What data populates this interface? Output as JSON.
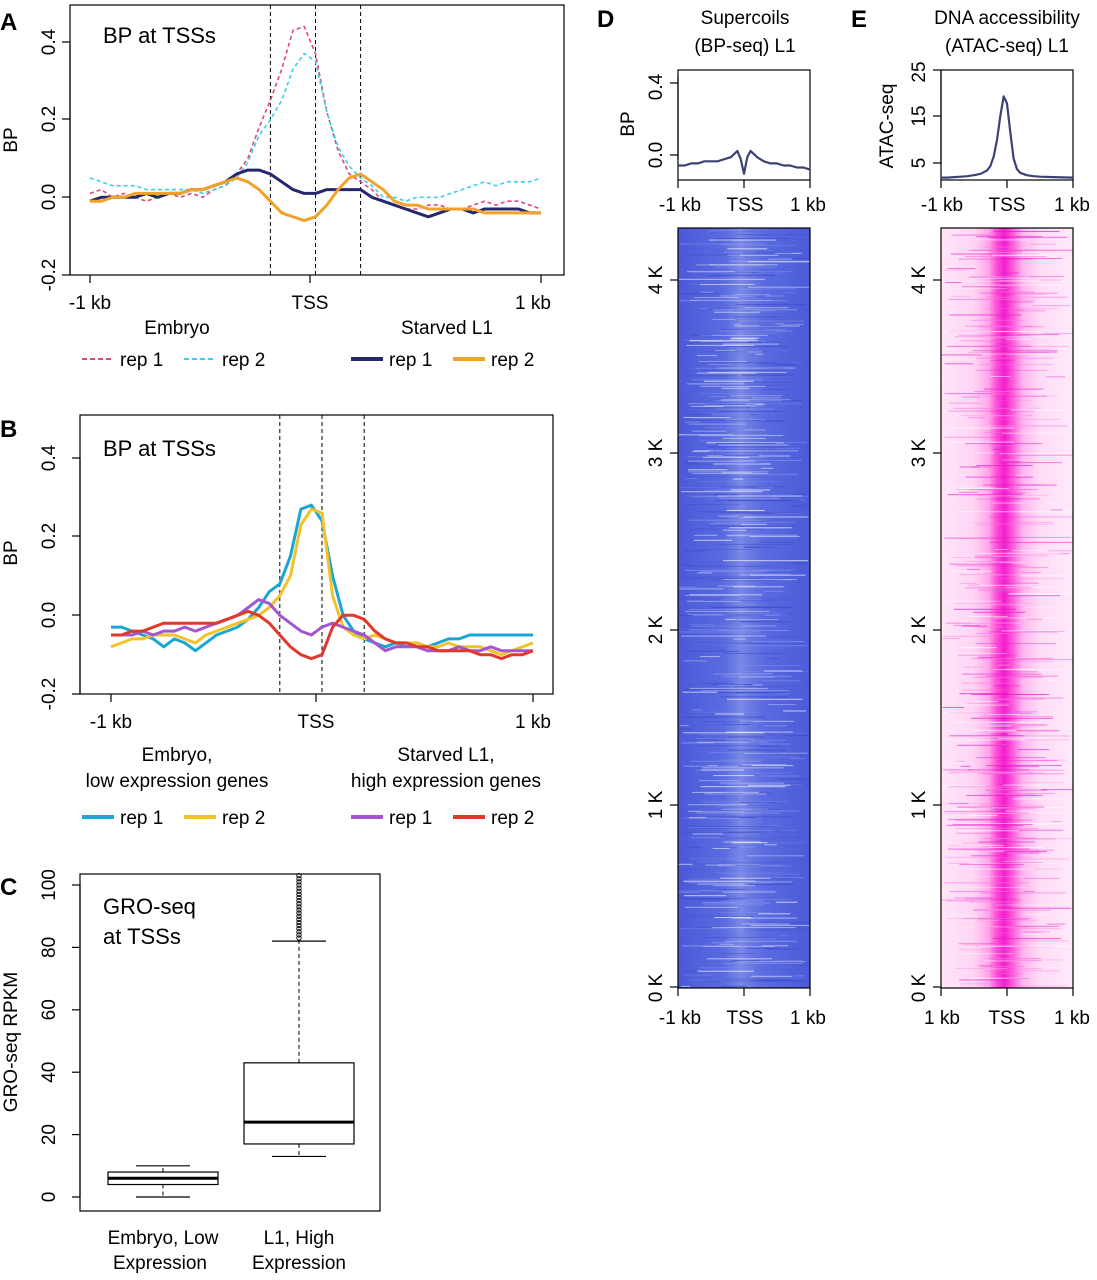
{
  "colors": {
    "embryo_rep1": "#e0457f",
    "embryo_rep2": "#3ad0e6",
    "l1_rep1": "#25286a",
    "l1_rep2": "#f2a22a",
    "low_rep1": "#1aa6d2",
    "low_rep2": "#f2c22a",
    "high_rep1": "#a356cf",
    "high_rep2": "#e0392b",
    "profile_line": "#3d4275",
    "heat_bp_base": "#5566dd",
    "heat_atac_base": "#ff3fd3"
  },
  "chart_data": [
    {
      "panel": "A",
      "type": "line",
      "title": "BP at TSSs",
      "ylabel": "BP",
      "xlabel": "",
      "ylim": [
        -0.2,
        0.45
      ],
      "yticks": [
        "-0.2",
        "0.0",
        "0.2",
        "0.4"
      ],
      "xticks": [
        "-1 kb",
        "TSS",
        "1 kb"
      ],
      "xlim": [
        -1000,
        1000
      ],
      "dashed_vlines": [
        -200,
        0,
        200
      ],
      "legend": {
        "groups": [
          {
            "title": "Embryo",
            "entries": [
              "rep 1",
              "rep 2"
            ]
          },
          {
            "title": "Starved L1",
            "entries": [
              "rep 1",
              "rep 2"
            ]
          }
        ]
      },
      "x": [
        -1000,
        -950,
        -900,
        -850,
        -800,
        -750,
        -700,
        -650,
        -600,
        -550,
        -500,
        -450,
        -400,
        -350,
        -300,
        -250,
        -200,
        -150,
        -100,
        -50,
        0,
        50,
        100,
        150,
        200,
        250,
        300,
        350,
        400,
        450,
        500,
        550,
        600,
        650,
        700,
        750,
        800,
        850,
        900,
        950,
        1000
      ],
      "series": [
        {
          "name": "Embryo rep 1",
          "group": "Embryo",
          "color_key": "embryo_rep1",
          "dashed": true,
          "values": [
            0.01,
            0.02,
            0.0,
            0.01,
            0.0,
            -0.01,
            0.0,
            0.01,
            0.0,
            0.01,
            0.0,
            0.02,
            0.03,
            0.06,
            0.1,
            0.18,
            0.25,
            0.33,
            0.43,
            0.44,
            0.37,
            0.22,
            0.12,
            0.06,
            0.04,
            0.02,
            -0.01,
            -0.02,
            -0.03,
            -0.03,
            -0.02,
            -0.02,
            -0.03,
            -0.03,
            -0.02,
            -0.01,
            -0.02,
            -0.01,
            -0.01,
            -0.02,
            -0.03
          ]
        },
        {
          "name": "Embryo rep 2",
          "group": "Embryo",
          "color_key": "embryo_rep2",
          "dashed": true,
          "values": [
            0.05,
            0.04,
            0.03,
            0.03,
            0.03,
            0.02,
            0.02,
            0.02,
            0.02,
            0.02,
            0.01,
            0.02,
            0.03,
            0.05,
            0.09,
            0.16,
            0.2,
            0.25,
            0.33,
            0.37,
            0.35,
            0.22,
            0.13,
            0.08,
            0.05,
            0.03,
            0.0,
            0.0,
            -0.01,
            0.0,
            0.0,
            0.0,
            0.01,
            0.02,
            0.03,
            0.04,
            0.03,
            0.04,
            0.04,
            0.04,
            0.05
          ]
        },
        {
          "name": "Starved L1 rep 1",
          "group": "Starved L1",
          "color_key": "l1_rep1",
          "dashed": false,
          "values": [
            -0.01,
            0.0,
            0.0,
            0.0,
            0.0,
            0.01,
            0.0,
            0.01,
            0.01,
            0.02,
            0.02,
            0.03,
            0.04,
            0.06,
            0.07,
            0.07,
            0.06,
            0.04,
            0.02,
            0.01,
            0.01,
            0.02,
            0.02,
            0.02,
            0.02,
            0.0,
            -0.01,
            -0.02,
            -0.03,
            -0.04,
            -0.05,
            -0.04,
            -0.03,
            -0.03,
            -0.04,
            -0.03,
            -0.03,
            -0.03,
            -0.03,
            -0.04,
            -0.04
          ]
        },
        {
          "name": "Starved L1 rep 2",
          "group": "Starved L1",
          "color_key": "l1_rep2",
          "dashed": false,
          "values": [
            -0.01,
            -0.01,
            0.0,
            0.0,
            0.01,
            0.01,
            0.01,
            0.01,
            0.01,
            0.02,
            0.02,
            0.03,
            0.04,
            0.05,
            0.04,
            0.02,
            -0.01,
            -0.04,
            -0.05,
            -0.06,
            -0.05,
            -0.02,
            0.02,
            0.05,
            0.06,
            0.04,
            0.02,
            -0.01,
            -0.02,
            -0.02,
            -0.03,
            -0.03,
            -0.03,
            -0.03,
            -0.03,
            -0.04,
            -0.04,
            -0.04,
            -0.04,
            -0.04,
            -0.04
          ]
        }
      ]
    },
    {
      "panel": "B",
      "type": "line",
      "title": "BP at TSSs",
      "ylabel": "BP",
      "xlabel": "",
      "ylim": [
        -0.2,
        0.5
      ],
      "yticks": [
        "-0.2",
        "0.0",
        "0.2",
        "0.4"
      ],
      "xticks": [
        "-1 kb",
        "TSS",
        "1 kb"
      ],
      "xlim": [
        -1000,
        1000
      ],
      "dashed_vlines": [
        -200,
        0,
        200
      ],
      "legend": {
        "groups": [
          {
            "title": "Embryo,\nlow expression genes",
            "title_lines": [
              "Embryo,",
              "low expression genes"
            ],
            "entries": [
              "rep 1",
              "rep 2"
            ]
          },
          {
            "title": "Starved L1,\nhigh expression genes",
            "title_lines": [
              "Starved L1,",
              "high expression genes"
            ],
            "entries": [
              "rep 1",
              "rep 2"
            ]
          }
        ]
      },
      "x": [
        -1000,
        -950,
        -900,
        -850,
        -800,
        -750,
        -700,
        -650,
        -600,
        -550,
        -500,
        -450,
        -400,
        -350,
        -300,
        -250,
        -200,
        -150,
        -100,
        -50,
        0,
        50,
        100,
        150,
        200,
        250,
        300,
        350,
        400,
        450,
        500,
        550,
        600,
        650,
        700,
        750,
        800,
        850,
        900,
        950,
        1000
      ],
      "series": [
        {
          "name": "Embryo low rep 1",
          "group": "Embryo, low expression genes",
          "color_key": "low_rep1",
          "values": [
            -0.03,
            -0.03,
            -0.04,
            -0.05,
            -0.06,
            -0.08,
            -0.06,
            -0.07,
            -0.09,
            -0.07,
            -0.05,
            -0.04,
            -0.03,
            -0.01,
            0.02,
            0.06,
            0.08,
            0.15,
            0.27,
            0.28,
            0.24,
            0.1,
            0.0,
            -0.04,
            -0.06,
            -0.07,
            -0.08,
            -0.07,
            -0.08,
            -0.07,
            -0.08,
            -0.07,
            -0.06,
            -0.06,
            -0.05,
            -0.05,
            -0.05,
            -0.05,
            -0.05,
            -0.05,
            -0.05
          ]
        },
        {
          "name": "Embryo low rep 2",
          "group": "Embryo, low expression genes",
          "color_key": "low_rep2",
          "values": [
            -0.08,
            -0.07,
            -0.06,
            -0.06,
            -0.05,
            -0.05,
            -0.05,
            -0.06,
            -0.07,
            -0.05,
            -0.04,
            -0.03,
            -0.02,
            -0.01,
            0.0,
            0.02,
            0.05,
            0.1,
            0.23,
            0.27,
            0.26,
            0.05,
            -0.03,
            -0.05,
            -0.06,
            -0.05,
            -0.06,
            -0.07,
            -0.07,
            -0.07,
            -0.08,
            -0.08,
            -0.07,
            -0.08,
            -0.08,
            -0.08,
            -0.09,
            -0.1,
            -0.09,
            -0.08,
            -0.07
          ]
        },
        {
          "name": "Starved L1 high rep 1",
          "group": "Starved L1, high expression genes",
          "color_key": "high_rep1",
          "values": [
            -0.05,
            -0.05,
            -0.05,
            -0.04,
            -0.05,
            -0.04,
            -0.04,
            -0.03,
            -0.04,
            -0.03,
            -0.02,
            -0.01,
            0.0,
            0.02,
            0.04,
            0.03,
            0.0,
            -0.02,
            -0.04,
            -0.05,
            -0.03,
            -0.02,
            -0.03,
            -0.04,
            -0.05,
            -0.07,
            -0.09,
            -0.08,
            -0.08,
            -0.08,
            -0.09,
            -0.09,
            -0.09,
            -0.08,
            -0.09,
            -0.09,
            -0.08,
            -0.09,
            -0.09,
            -0.09,
            -0.09
          ]
        },
        {
          "name": "Starved L1 high rep 2",
          "group": "Starved L1, high expression genes",
          "color_key": "high_rep2",
          "values": [
            -0.05,
            -0.05,
            -0.04,
            -0.04,
            -0.03,
            -0.02,
            -0.02,
            -0.02,
            -0.02,
            -0.02,
            -0.02,
            -0.01,
            0.0,
            0.01,
            0.0,
            -0.02,
            -0.05,
            -0.08,
            -0.1,
            -0.11,
            -0.1,
            -0.03,
            0.0,
            0.0,
            -0.01,
            -0.04,
            -0.06,
            -0.07,
            -0.07,
            -0.08,
            -0.08,
            -0.09,
            -0.09,
            -0.09,
            -0.09,
            -0.1,
            -0.1,
            -0.11,
            -0.1,
            -0.1,
            -0.09
          ]
        }
      ]
    },
    {
      "panel": "C",
      "type": "box",
      "title_lines": [
        "GRO-seq",
        "at TSSs"
      ],
      "ylabel": "GRO-seq RPKM",
      "ylim": [
        -5,
        105
      ],
      "yticks": [
        0,
        20,
        40,
        60,
        80,
        100
      ],
      "boxes": [
        {
          "label_lines": [
            "Embryo, Low",
            "Expression"
          ],
          "whisker_low": 0,
          "q1": 4,
          "median": 6,
          "q3": 8,
          "whisker_high": 10,
          "outliers": []
        },
        {
          "label_lines": [
            "L1, High",
            "Expression"
          ],
          "whisker_low": 13,
          "q1": 17,
          "median": 24,
          "q3": 43,
          "whisker_high": 82,
          "outliers": [
            83,
            84,
            85,
            86,
            87,
            88,
            89,
            90,
            91,
            92,
            93,
            94,
            95,
            96,
            97,
            98,
            99,
            100,
            101,
            102,
            103
          ]
        }
      ]
    },
    {
      "panel": "D",
      "type": "heatmap",
      "title_lines": [
        "Supercoils",
        "(BP-seq) L1"
      ],
      "profile": {
        "ylabel": "BP",
        "yticks": [
          "0.0",
          "0.4"
        ],
        "ylim": [
          -0.08,
          0.45
        ],
        "xticks": [
          "-1 kb",
          "TSS",
          "1 kb"
        ],
        "x": [
          -1000,
          -900,
          -800,
          -700,
          -600,
          -500,
          -400,
          -300,
          -200,
          -100,
          -50,
          0,
          50,
          100,
          200,
          300,
          400,
          500,
          600,
          700,
          800,
          900,
          1000
        ],
        "values": [
          -0.01,
          -0.01,
          0.0,
          0.0,
          0.01,
          0.01,
          0.01,
          0.02,
          0.03,
          0.06,
          0.02,
          -0.05,
          0.03,
          0.06,
          0.03,
          0.01,
          0.0,
          0.0,
          -0.01,
          -0.01,
          -0.02,
          -0.02,
          -0.03
        ]
      },
      "heat_yticks": [
        "0 K",
        "1 K",
        "2 K",
        "3 K",
        "4 K"
      ],
      "heat_xticks": [
        "-1 kb",
        "TSS",
        "1 kb"
      ]
    },
    {
      "panel": "E",
      "type": "heatmap",
      "title_lines": [
        "DNA accessibility",
        "(ATAC-seq) L1"
      ],
      "profile": {
        "ylabel": "ATAC-seq",
        "yticks": [
          "5",
          "15",
          "25"
        ],
        "ylim": [
          2,
          25
        ],
        "xticks": [
          "-1 kb",
          "TSS",
          "1 kb"
        ],
        "x": [
          -1000,
          -900,
          -800,
          -700,
          -600,
          -500,
          -400,
          -300,
          -250,
          -200,
          -150,
          -100,
          -50,
          0,
          50,
          100,
          150,
          200,
          300,
          400,
          500,
          700,
          1000
        ],
        "values": [
          2.5,
          2.5,
          2.6,
          2.7,
          2.8,
          3.0,
          3.3,
          4.0,
          5.0,
          7.0,
          10.5,
          15.5,
          19.5,
          18.0,
          12.0,
          6.5,
          4.3,
          3.5,
          3.0,
          2.8,
          2.7,
          2.6,
          2.5
        ]
      },
      "heat_yticks": [
        "0 K",
        "1 K",
        "2 K",
        "3 K",
        "4 K"
      ],
      "heat_xticks": [
        "1 kb",
        "TSS",
        "1 kb"
      ]
    }
  ]
}
